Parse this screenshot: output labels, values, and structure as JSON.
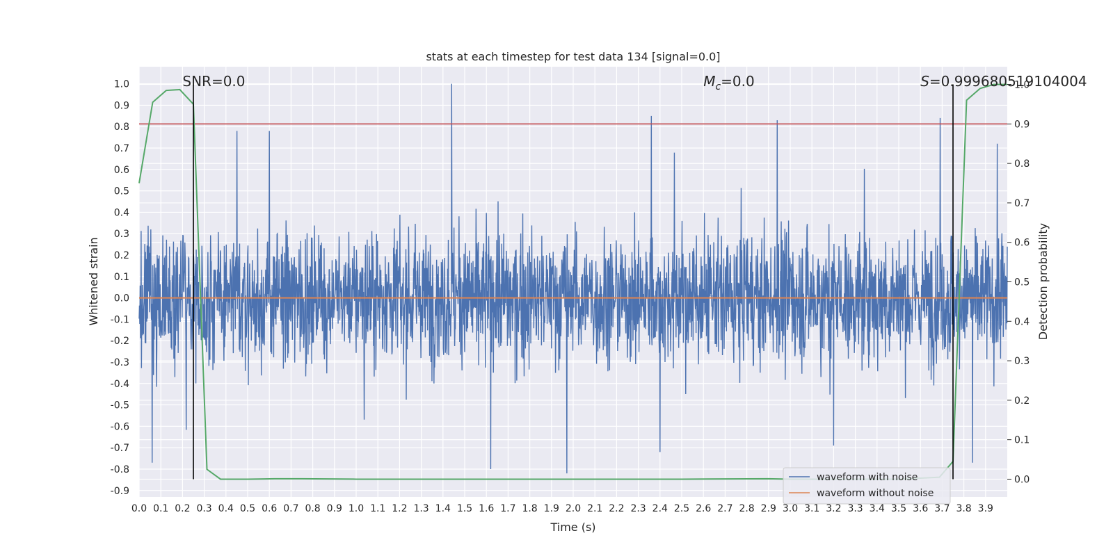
{
  "chart_data": {
    "type": "line",
    "title": "stats at each timestep for test data 134 [signal=0.0]",
    "xlabel": "Time (s)",
    "ylabel_left": "Whitened strain",
    "ylabel_right": "Detection probability",
    "xlim": [
      0.0,
      4.0
    ],
    "ylim_left": [
      -0.93,
      1.08
    ],
    "ylim_right": [
      -0.045,
      1.045
    ],
    "x_ticks": [
      "0.0",
      "0.1",
      "0.2",
      "0.3",
      "0.4",
      "0.5",
      "0.6",
      "0.7",
      "0.8",
      "0.9",
      "1.0",
      "1.1",
      "1.2",
      "1.3",
      "1.4",
      "1.5",
      "1.6",
      "1.7",
      "1.8",
      "1.9",
      "2.0",
      "2.1",
      "2.2",
      "2.3",
      "2.4",
      "2.5",
      "2.6",
      "2.7",
      "2.8",
      "2.9",
      "3.0",
      "3.1",
      "3.2",
      "3.3",
      "3.4",
      "3.5",
      "3.6",
      "3.7",
      "3.8",
      "3.9"
    ],
    "y_ticks_left": [
      "1.0",
      "0.9",
      "0.8",
      "0.7",
      "0.6",
      "0.5",
      "0.4",
      "0.3",
      "0.2",
      "0.1",
      "0.0",
      "-0.1",
      "-0.2",
      "-0.3",
      "-0.4",
      "-0.5",
      "-0.6",
      "-0.7",
      "-0.8",
      "-0.9"
    ],
    "y_ticks_right": [
      "1.0",
      "0.9",
      "0.8",
      "0.7",
      "0.6",
      "0.5",
      "0.4",
      "0.3",
      "0.2",
      "0.1",
      "0.0"
    ],
    "grid": true,
    "legend_position": "bottom-right",
    "annotations": {
      "snr": {
        "text": "SNR=0.0",
        "x": 0.2
      },
      "mc": {
        "prefix": "M",
        "subscript": "c",
        "suffix": "=0.0",
        "x": 2.6
      },
      "s": {
        "prefix": "S",
        "suffix": "=0.999680519104004",
        "x": 3.6
      }
    },
    "vertical_lines_x": [
      0.25,
      3.75
    ],
    "threshold_right": 0.9,
    "series": [
      {
        "name": "waveform with noise",
        "color": "#4c72b0",
        "axis": "left",
        "style": "noise",
        "noise_envelope": [
          -0.9,
          1.0
        ],
        "sample_peaks": [
          {
            "x": 1.44,
            "y": 1.0
          },
          {
            "x": 2.36,
            "y": 0.85
          },
          {
            "x": 3.69,
            "y": 0.84
          },
          {
            "x": 0.45,
            "y": 0.78
          },
          {
            "x": 0.6,
            "y": 0.78
          },
          {
            "x": 2.94,
            "y": 0.83
          },
          {
            "x": 1.97,
            "y": -0.82
          },
          {
            "x": 1.62,
            "y": -0.8
          },
          {
            "x": 0.06,
            "y": -0.77
          },
          {
            "x": 3.84,
            "y": -0.77
          },
          {
            "x": 3.2,
            "y": -0.69
          },
          {
            "x": 2.4,
            "y": -0.72
          }
        ]
      },
      {
        "name": "waveform without noise",
        "color": "#dd8452",
        "axis": "left",
        "x": [
          0.0,
          4.0
        ],
        "y": [
          0.0,
          0.0
        ]
      },
      {
        "name": "",
        "color": "#55a868",
        "axis": "right",
        "x": [
          0.0,
          0.0625,
          0.125,
          0.1875,
          0.25,
          0.3125,
          0.375,
          0.4375,
          0.5,
          0.625,
          0.75,
          1.0,
          1.5,
          2.0,
          2.5,
          2.9,
          3.0,
          3.25,
          3.5,
          3.6875,
          3.75,
          3.8125,
          3.875,
          3.9375,
          4.0
        ],
        "y": [
          0.75,
          0.955,
          0.985,
          0.987,
          0.95,
          0.025,
          0.0,
          0.0,
          0.0,
          0.001,
          0.001,
          0.0,
          0.0,
          0.0,
          0.0,
          0.001,
          0.0,
          0.0,
          0.0,
          0.005,
          0.045,
          0.96,
          0.99,
          1.0,
          1.0
        ]
      }
    ],
    "threshold_color": "#c44e52"
  }
}
